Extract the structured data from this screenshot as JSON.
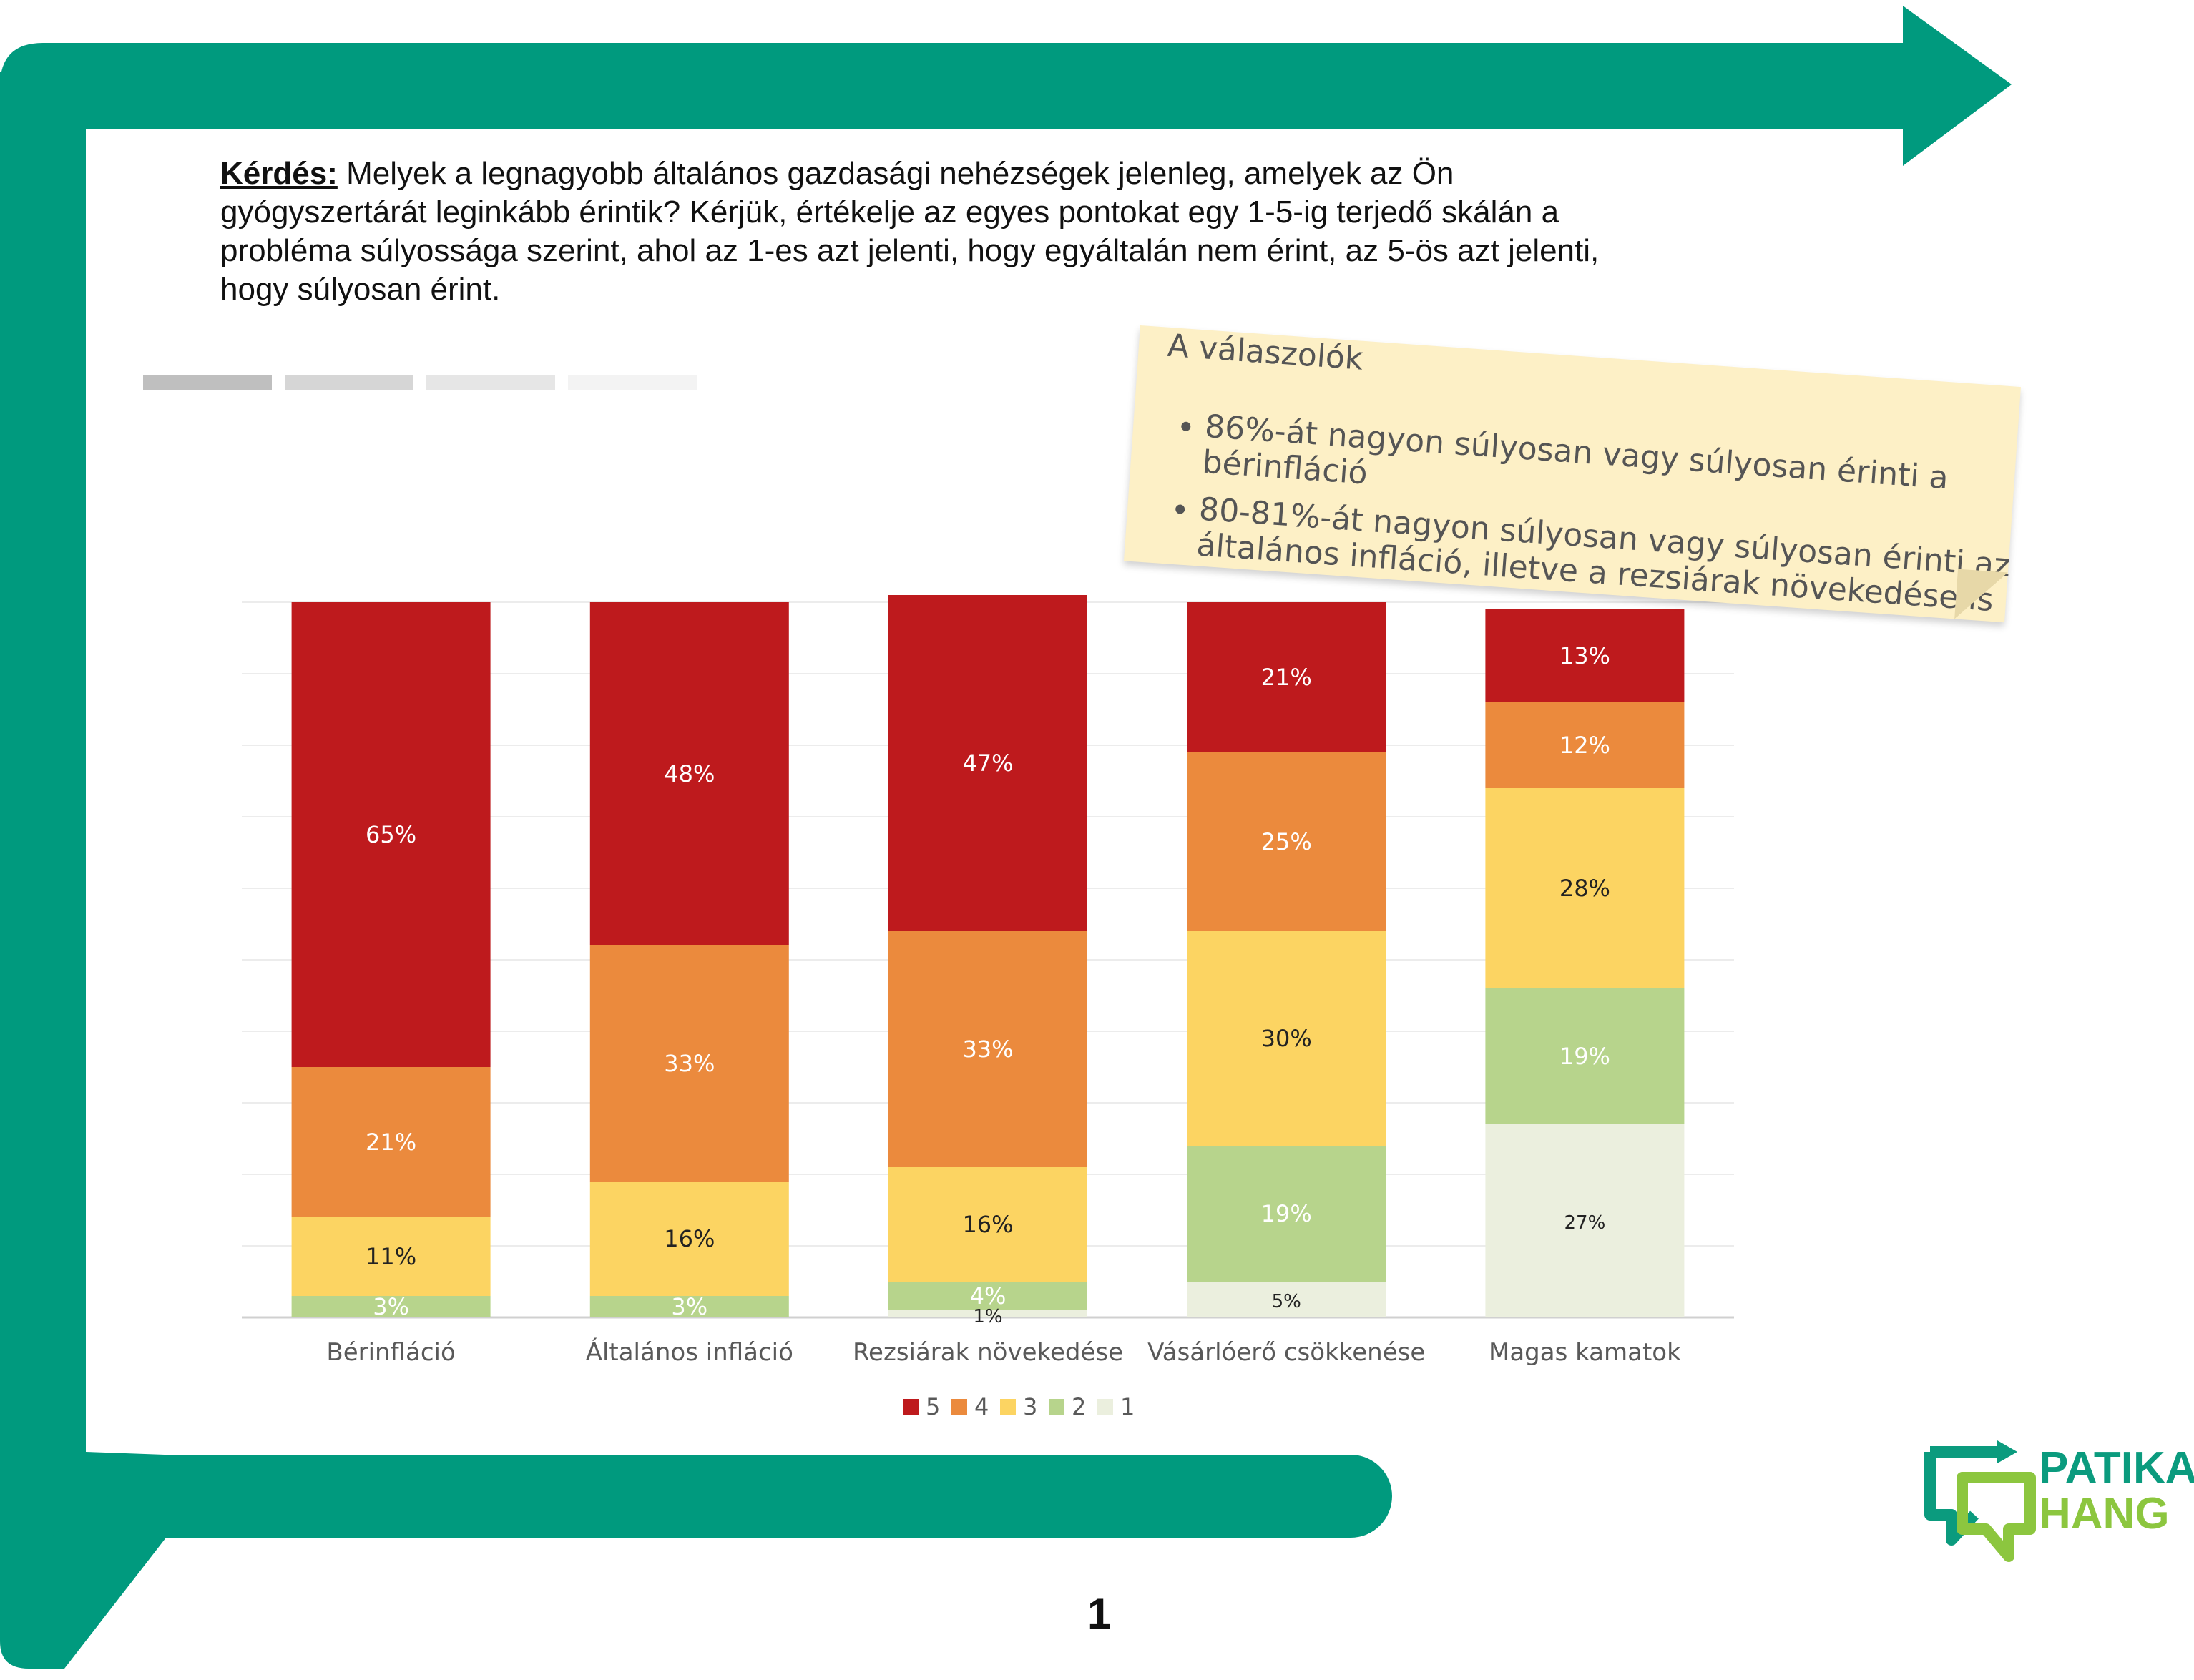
{
  "question": {
    "label": "Kérdés:",
    "text": " Melyek a legnagyobb általános gazdasági nehézségek jelenleg, amelyek az Ön gyógyszertárát leginkább érintik? Kérjük, értékelje az egyes pontokat egy 1-5-ig terjedő skálán a probléma súlyossága szerint, ahol az 1-es azt jelenti, hogy egyáltalán nem érint, az 5-ös azt jelenti, hogy súlyosan érint."
  },
  "note": {
    "title": "A válaszolók",
    "bullets": [
      "86%-át nagyon súlyosan vagy súlyosan érinti a bérinfláció",
      "80-81%-át nagyon súlyosan vagy súlyosan érinti az általános infláció, illetve a rezsiárak növekedése is"
    ]
  },
  "chart_data": {
    "type": "bar",
    "stacked": true,
    "categories": [
      "Bérinfláció",
      "Általános infláció",
      "Rezsiárak növekedése",
      "Vásárlóerő csökkenése",
      "Magas kamatok"
    ],
    "series": [
      {
        "name": "5",
        "color": "#be1a1d",
        "values": [
          65,
          48,
          47,
          21,
          13
        ],
        "labels": [
          "65%",
          "48%",
          "47%",
          "21%",
          "13%"
        ]
      },
      {
        "name": "4",
        "color": "#eb8a3d",
        "values": [
          21,
          33,
          33,
          25,
          12
        ],
        "labels": [
          "21%",
          "33%",
          "33%",
          "25%",
          "12%"
        ]
      },
      {
        "name": "3",
        "color": "#fcd462",
        "values": [
          11,
          16,
          16,
          30,
          28
        ],
        "labels": [
          "11%",
          "16%",
          "16%",
          "30%",
          "28%"
        ]
      },
      {
        "name": "2",
        "color": "#b7d48c",
        "values": [
          3,
          3,
          4,
          19,
          19
        ],
        "labels": [
          "3%",
          "3%",
          "4%",
          "19%",
          "19%"
        ]
      },
      {
        "name": "1",
        "color": "#ebefde",
        "values": [
          0,
          0,
          1,
          5,
          27
        ],
        "labels": [
          "",
          "",
          "1%",
          "5%",
          "27%"
        ]
      }
    ],
    "legend_order": [
      "5",
      "4",
      "3",
      "2",
      "1"
    ],
    "legend_position": "bottom",
    "ylim": [
      0,
      100
    ],
    "grid": true
  },
  "logo": {
    "line1": "PATIKA",
    "line2": "HANG"
  },
  "page_number": "1",
  "colors": {
    "frame": "#009a7e",
    "logo_green": "#8cc63f"
  }
}
